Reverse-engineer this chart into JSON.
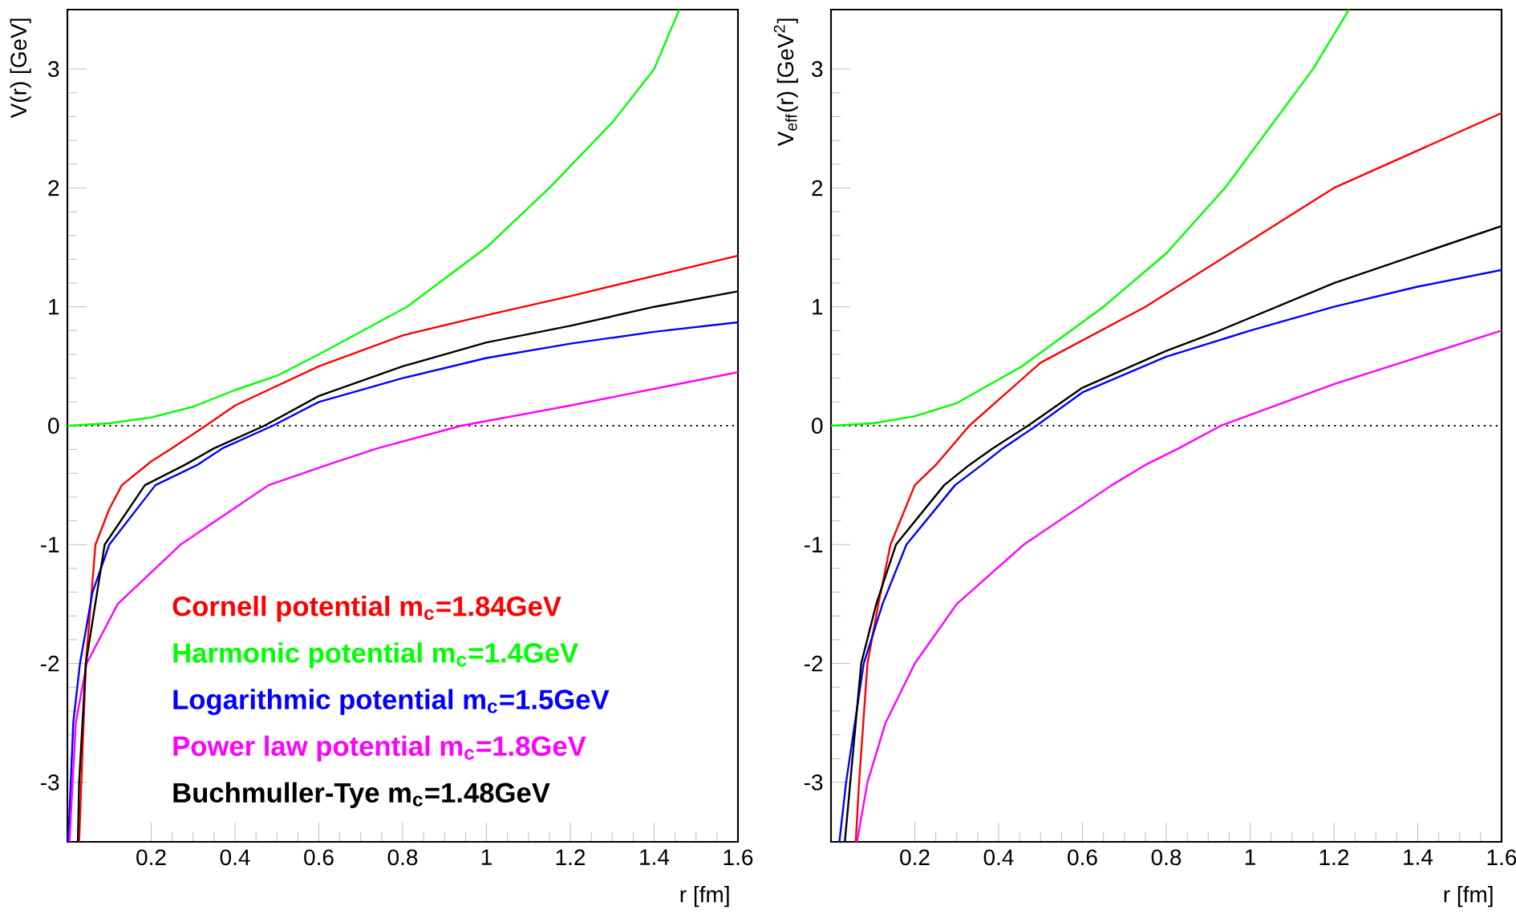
{
  "chart_data": [
    {
      "type": "line",
      "xlabel": "r [fm]",
      "ylabel": "V(r) [GeV]",
      "xlim": [
        0,
        1.6
      ],
      "ylim": [
        -3.5,
        3.5
      ],
      "xticks": [
        0.2,
        0.4,
        0.6,
        0.8,
        1,
        1.2,
        1.4,
        1.6
      ],
      "yticks": [
        -3,
        -2,
        -1,
        0,
        1,
        2,
        3
      ],
      "legend": "bottom",
      "ref_lines": [
        {
          "axis": "y",
          "value": 0,
          "color": "#000000",
          "line_style": "dotted"
        }
      ],
      "series": [
        {
          "name": "Cornell potential m$_{c}$=1.84GeV",
          "color": "#ff0000",
          "x": [
            0.028,
            0.044,
            0.067,
            0.1,
            0.13,
            0.2,
            0.249,
            0.33,
            0.4,
            0.6,
            0.8,
            1.0,
            1.2,
            1.4,
            1.6
          ],
          "values": [
            -3.5,
            -2,
            -1,
            -0.7,
            -0.5,
            -0.3,
            -0.19,
            0,
            0.17,
            0.5,
            0.76,
            0.93,
            1.09,
            1.26,
            1.43
          ]
        },
        {
          "name": "Harmonic potential m$_{c}$=1.4GeV",
          "color": "#00ff00",
          "x": [
            0,
            0.1,
            0.2,
            0.3,
            0.4,
            0.5,
            0.6,
            0.81,
            1.0,
            1.15,
            1.3,
            1.4,
            1.46
          ],
          "values": [
            0,
            0.02,
            0.07,
            0.16,
            0.3,
            0.42,
            0.6,
            1,
            1.5,
            2,
            2.55,
            3.0,
            3.5
          ]
        },
        {
          "name": "Logarithmic potential m$_{c}$=1.5GeV",
          "color": "#0000ff",
          "x": [
            0.002,
            0.014,
            0.03,
            0.06,
            0.1,
            0.21,
            0.31,
            0.37,
            0.49,
            0.6,
            0.8,
            1.0,
            1.2,
            1.4,
            1.6
          ],
          "values": [
            -3.5,
            -2.5,
            -2,
            -1.4,
            -1,
            -0.5,
            -0.33,
            -0.19,
            0,
            0.2,
            0.4,
            0.57,
            0.69,
            0.79,
            0.87
          ]
        },
        {
          "name": "Power law potential m$_{c}$=1.8GeV",
          "color": "#ff00ff",
          "x": [
            0.005,
            0.02,
            0.046,
            0.12,
            0.27,
            0.48,
            0.62,
            0.74,
            0.94,
            1.2,
            1.4,
            1.6
          ],
          "values": [
            -3.5,
            -2.5,
            -2,
            -1.5,
            -1,
            -0.5,
            -0.33,
            -0.19,
            0,
            0.17,
            0.31,
            0.45
          ]
        },
        {
          "name": "Buchmuller-Tye m$_{c}$=1.48GeV",
          "color": "#000000",
          "x": [
            0.025,
            0.028,
            0.044,
            0.089,
            0.185,
            0.28,
            0.35,
            0.47,
            0.6,
            0.8,
            1.0,
            1.2,
            1.4,
            1.6
          ],
          "values": [
            -3.5,
            -3,
            -2,
            -1,
            -0.5,
            -0.33,
            -0.19,
            0,
            0.25,
            0.5,
            0.7,
            0.84,
            1.0,
            1.13
          ]
        }
      ]
    },
    {
      "type": "line",
      "xlabel": "r [fm]",
      "ylabel": "V$_{eff}$(r) [GeV$^{2}$]",
      "xlim": [
        0,
        1.6
      ],
      "ylim": [
        -3.5,
        3.5
      ],
      "xticks": [
        0.2,
        0.4,
        0.6,
        0.8,
        1,
        1.2,
        1.4,
        1.6
      ],
      "yticks": [
        -3,
        -2,
        -1,
        0,
        1,
        2,
        3
      ],
      "ref_lines": [
        {
          "axis": "y",
          "value": 0,
          "color": "#000000",
          "line_style": "dotted"
        }
      ],
      "series": [
        {
          "color": "#ff0000",
          "x": [
            0.059,
            0.067,
            0.087,
            0.113,
            0.142,
            0.2,
            0.25,
            0.33,
            0.5,
            0.75,
            1.2,
            1.6
          ],
          "values": [
            -3.5,
            -3,
            -2,
            -1.5,
            -1,
            -0.5,
            -0.33,
            0,
            0.53,
            1,
            2,
            2.63
          ]
        },
        {
          "color": "#00ff00",
          "x": [
            0,
            0.1,
            0.2,
            0.3,
            0.456,
            0.65,
            0.8,
            0.94,
            1.15,
            1.236
          ],
          "values": [
            0,
            0.02,
            0.08,
            0.19,
            0.5,
            1,
            1.45,
            2,
            3,
            3.5
          ]
        },
        {
          "color": "#0000ff",
          "x": [
            0.02,
            0.036,
            0.078,
            0.123,
            0.18,
            0.296,
            0.36,
            0.41,
            0.49,
            0.6,
            0.8,
            1.0,
            1.2,
            1.4,
            1.6
          ],
          "values": [
            -3.5,
            -3,
            -2,
            -1.5,
            -1,
            -0.5,
            -0.33,
            -0.19,
            0,
            0.28,
            0.58,
            0.8,
            1.0,
            1.17,
            1.31
          ]
        },
        {
          "color": "#ff00ff",
          "x": [
            0.062,
            0.087,
            0.13,
            0.2,
            0.3,
            0.46,
            0.67,
            0.75,
            0.83,
            0.93,
            1.2,
            1.6
          ],
          "values": [
            -3.5,
            -3,
            -2.5,
            -2,
            -1.5,
            -1,
            -0.5,
            -0.33,
            -0.19,
            0,
            0.35,
            0.8
          ]
        },
        {
          "color": "#000000",
          "x": [
            0.033,
            0.046,
            0.072,
            0.108,
            0.155,
            0.27,
            0.33,
            0.386,
            0.47,
            0.6,
            0.8,
            0.92,
            1.2,
            1.6
          ],
          "values": [
            -3.5,
            -3,
            -2,
            -1.5,
            -1,
            -0.5,
            -0.33,
            -0.19,
            0,
            0.32,
            0.63,
            0.79,
            1.2,
            1.68
          ]
        }
      ]
    }
  ]
}
